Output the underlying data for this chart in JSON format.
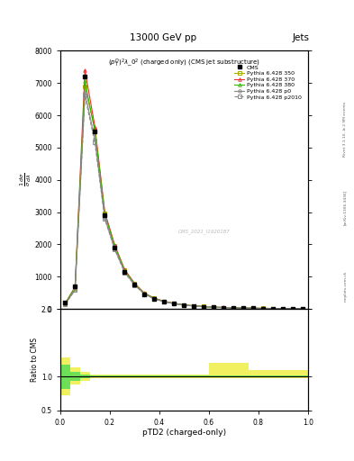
{
  "title_top": "13000 GeV pp",
  "title_right": "Jets",
  "plot_title": "$(p_T^D)^2\\lambda\\_0^2$ (charged only) (CMS jet substructure)",
  "xlabel": "pTD2 (charged-only)",
  "watermark": "CMS_2021_I1920187",
  "arxiv": "[arXiv:1306.3436]",
  "rivet": "Rivet 3.1.10, ≥ 2.9M events",
  "mcplots": "mcplots.cern.ch",
  "xlim": [
    0.0,
    1.0
  ],
  "ylim_main": [
    0,
    8000
  ],
  "ylim_ratio": [
    0.5,
    2.0
  ],
  "yticks_main": [
    0,
    1000,
    2000,
    3000,
    4000,
    5000,
    6000,
    7000,
    8000
  ],
  "x_data": [
    0.02,
    0.06,
    0.1,
    0.14,
    0.18,
    0.22,
    0.26,
    0.3,
    0.34,
    0.38,
    0.42,
    0.46,
    0.5,
    0.54,
    0.58,
    0.62,
    0.66,
    0.7,
    0.74,
    0.78,
    0.82,
    0.86,
    0.9,
    0.94,
    0.98
  ],
  "cms_data": [
    200,
    700,
    7200,
    5500,
    2900,
    1900,
    1150,
    750,
    460,
    310,
    220,
    160,
    115,
    90,
    68,
    52,
    40,
    32,
    25,
    19,
    15,
    11,
    9,
    7,
    5
  ],
  "py350_data": [
    160,
    650,
    6900,
    5550,
    2950,
    1950,
    1200,
    780,
    480,
    325,
    230,
    168,
    120,
    93,
    71,
    54,
    42,
    33,
    26,
    20,
    16,
    12,
    9,
    7,
    6
  ],
  "py370_data": [
    170,
    680,
    7400,
    5650,
    3000,
    1980,
    1220,
    795,
    490,
    332,
    235,
    172,
    124,
    96,
    73,
    56,
    44,
    34,
    27,
    21,
    17,
    13,
    10,
    8,
    6
  ],
  "py380_data": [
    165,
    660,
    7050,
    5520,
    2930,
    1940,
    1185,
    775,
    475,
    320,
    228,
    166,
    118,
    92,
    70,
    53,
    41,
    32,
    25,
    19,
    15,
    12,
    9,
    7,
    5
  ],
  "pyp0_data": [
    145,
    600,
    6700,
    5250,
    2820,
    1870,
    1145,
    750,
    460,
    310,
    222,
    162,
    115,
    89,
    68,
    51,
    40,
    31,
    24,
    18,
    14,
    11,
    8,
    7,
    5
  ],
  "pyp2010_data": [
    135,
    580,
    6600,
    5150,
    2780,
    1840,
    1125,
    740,
    453,
    305,
    218,
    159,
    113,
    87,
    66,
    50,
    39,
    30,
    23,
    18,
    14,
    10,
    8,
    6,
    5
  ],
  "colors": {
    "cms": "#000000",
    "py350": "#aaaa00",
    "py370": "#ee3333",
    "py380": "#33bb00",
    "pyp0": "#888888",
    "pyp2010": "#888888"
  },
  "legend_labels": [
    "CMS",
    "Pythia 6.428 350",
    "Pythia 6.428 370",
    "Pythia 6.428 380",
    "Pythia 6.428 p0",
    "Pythia 6.428 p2010"
  ],
  "ratio_bin_edges": [
    0.0,
    0.04,
    0.08,
    0.12,
    0.16,
    0.2,
    0.24,
    0.28,
    0.32,
    0.36,
    0.4,
    0.44,
    0.48,
    0.52,
    0.56,
    0.6,
    0.64,
    0.68,
    0.72,
    0.76,
    0.8,
    0.84,
    0.88,
    0.92,
    0.96,
    1.0
  ],
  "y350_lo": [
    0.72,
    0.88,
    0.93,
    0.97,
    0.97,
    0.97,
    0.97,
    0.97,
    0.97,
    0.97,
    0.97,
    0.97,
    0.97,
    0.97,
    0.97,
    0.97,
    0.97,
    0.97,
    0.97,
    0.97,
    0.97,
    0.97,
    0.97,
    0.97,
    0.97
  ],
  "y350_hi": [
    1.28,
    1.14,
    1.07,
    1.03,
    1.03,
    1.03,
    1.03,
    1.03,
    1.03,
    1.03,
    1.03,
    1.03,
    1.03,
    1.03,
    1.03,
    1.2,
    1.2,
    1.2,
    1.2,
    1.1,
    1.1,
    1.1,
    1.1,
    1.1,
    1.1
  ],
  "y380_lo": [
    0.82,
    0.93,
    0.97,
    0.99,
    0.99,
    0.99,
    0.99,
    0.99,
    0.99,
    0.99,
    0.99,
    0.99,
    0.99,
    0.99,
    0.99,
    0.99,
    0.99,
    0.99,
    0.99,
    0.99,
    0.99,
    0.99,
    0.99,
    0.99,
    0.99
  ],
  "y380_hi": [
    1.18,
    1.07,
    1.03,
    1.01,
    1.01,
    1.01,
    1.01,
    1.01,
    1.01,
    1.01,
    1.01,
    1.01,
    1.01,
    1.01,
    1.01,
    1.01,
    1.01,
    1.01,
    1.01,
    1.01,
    1.01,
    1.01,
    1.01,
    1.01,
    1.01
  ],
  "background_color": "#ffffff"
}
